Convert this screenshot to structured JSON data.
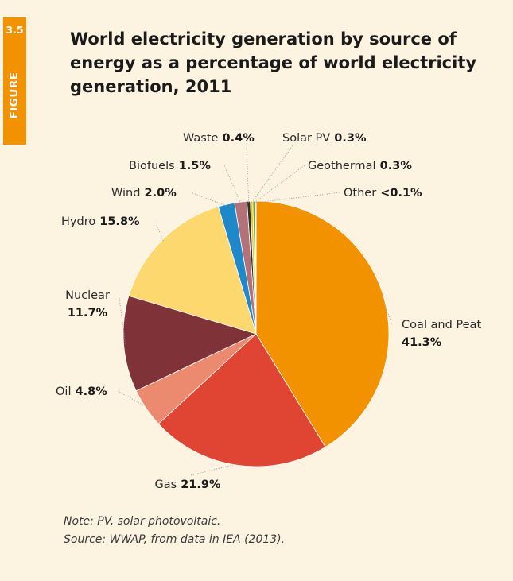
{
  "figure": {
    "number": "3.5",
    "label": "FIGURE"
  },
  "title": "World electricity generation by source of energy as a percentage of world electricity generation, 2011",
  "notes": {
    "note": "Note: PV, solar photovoltaic.",
    "source": "Source: WWAP, from data in IEA (2013)."
  },
  "colors": {
    "panel_bg": "#fdf3e1",
    "tab": "#f39200"
  },
  "chart_data": {
    "type": "pie",
    "title": "World electricity generation by source of energy as a percentage of world electricity generation, 2011",
    "slices": [
      {
        "name": "Coal and Peat",
        "value_label": "41.3%",
        "value": 41.3,
        "color": "#f39200"
      },
      {
        "name": "Gas",
        "value_label": "21.9%",
        "value": 21.9,
        "color": "#e04433"
      },
      {
        "name": "Oil",
        "value_label": "4.8%",
        "value": 4.8,
        "color": "#eb8a6e"
      },
      {
        "name": "Nuclear",
        "value_label": "11.7%",
        "value": 11.7,
        "color": "#7f3338"
      },
      {
        "name": "Hydro",
        "value_label": "15.8%",
        "value": 15.8,
        "color": "#fdd86f"
      },
      {
        "name": "Wind",
        "value_label": "2.0%",
        "value": 2.0,
        "color": "#1e88c8"
      },
      {
        "name": "Biofuels",
        "value_label": "1.5%",
        "value": 1.5,
        "color": "#b27277"
      },
      {
        "name": "Waste",
        "value_label": "0.4%",
        "value": 0.4,
        "color": "#2f2f2f"
      },
      {
        "name": "Solar PV",
        "value_label": "0.3%",
        "value": 0.3,
        "color": "#f6c400"
      },
      {
        "name": "Geothermal",
        "value_label": "0.3%",
        "value": 0.3,
        "color": "#6aaa3a"
      },
      {
        "name": "Other",
        "value_label": "<0.1%",
        "value": 0.1,
        "color": "#4ab3c7"
      }
    ]
  }
}
